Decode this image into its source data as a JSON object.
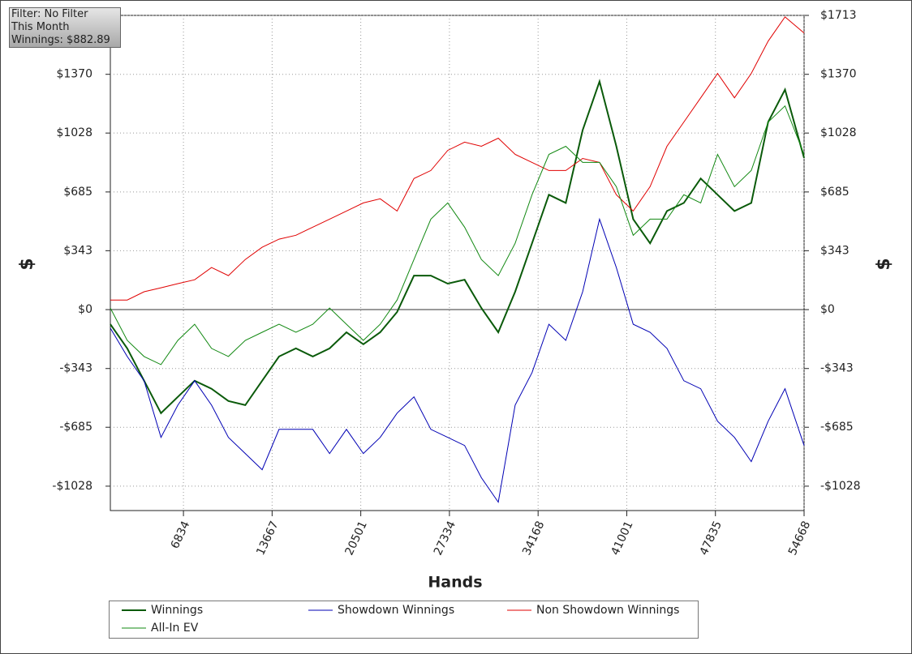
{
  "info": {
    "filter": "Filter: No Filter",
    "period": "This Month",
    "winnings": "Winnings: $882.89"
  },
  "chart_data": {
    "type": "line",
    "xlabel": "Hands",
    "ylabel": "$",
    "xlim": [
      1200,
      54668
    ],
    "xticks": [
      6834,
      13667,
      20501,
      27334,
      34168,
      41001,
      47835,
      54668
    ],
    "ylim": [
      -1170,
      1713
    ],
    "yticks": [
      {
        "value": -1028,
        "label": "-$1028"
      },
      {
        "value": -685,
        "label": "-$685"
      },
      {
        "value": -343,
        "label": "-$343"
      },
      {
        "value": 0,
        "label": "$0"
      },
      {
        "value": 343,
        "label": "$343"
      },
      {
        "value": 685,
        "label": "$685"
      },
      {
        "value": 1028,
        "label": "$1028"
      },
      {
        "value": 1370,
        "label": "$1370"
      },
      {
        "value": 1713,
        "label": "$1713"
      }
    ],
    "grid": true,
    "x": [
      1200,
      2500,
      3800,
      5100,
      6400,
      7700,
      9000,
      10300,
      11600,
      12900,
      14200,
      15500,
      16800,
      18100,
      19400,
      20700,
      22000,
      23300,
      24600,
      25900,
      27200,
      28500,
      29800,
      31100,
      32400,
      33700,
      35000,
      36300,
      37600,
      38900,
      40200,
      41500,
      42800,
      44100,
      45400,
      46700,
      48000,
      49300,
      50600,
      51900,
      53200,
      54668
    ],
    "series": [
      {
        "name": "Winnings",
        "color": "#0a5a0a",
        "values": [
          -85,
          -226,
          -414,
          -603,
          -508,
          -414,
          -461,
          -532,
          -556,
          -414,
          -273,
          -226,
          -273,
          -226,
          -132,
          -202,
          -132,
          -14,
          198,
          198,
          151,
          174,
          9,
          -132,
          104,
          386,
          669,
          621,
          1045,
          1328,
          951,
          527,
          386,
          574,
          621,
          763,
          669,
          574,
          621,
          1092,
          1281,
          883
        ]
      },
      {
        "name": "Showdown Winnings",
        "color": "#0000b4",
        "values": [
          -108,
          -273,
          -414,
          -744,
          -556,
          -414,
          -556,
          -744,
          -838,
          -932,
          -697,
          -697,
          -697,
          -838,
          -697,
          -838,
          -744,
          -603,
          -508,
          -697,
          -744,
          -791,
          -979,
          -1121,
          -556,
          -367,
          -85,
          -179,
          104,
          527,
          245,
          -85,
          -132,
          -226,
          -414,
          -461,
          -650,
          -744,
          -885,
          -650,
          -461,
          -791
        ]
      },
      {
        "name": "Non Showdown Winnings",
        "color": "#e00000",
        "values": [
          56,
          56,
          104,
          127,
          151,
          174,
          245,
          198,
          292,
          363,
          410,
          433,
          480,
          527,
          574,
          621,
          645,
          574,
          763,
          810,
          927,
          975,
          951,
          998,
          904,
          857,
          810,
          810,
          880,
          857,
          669,
          574,
          716,
          951,
          1092,
          1233,
          1375,
          1233,
          1375,
          1563,
          1704,
          1610
        ]
      },
      {
        "name": "All-In EV",
        "color": "#118811",
        "values": [
          9,
          -179,
          -273,
          -320,
          -179,
          -85,
          -226,
          -273,
          -179,
          -132,
          -85,
          -132,
          -85,
          9,
          -85,
          -179,
          -85,
          56,
          292,
          527,
          621,
          480,
          292,
          198,
          386,
          669,
          904,
          951,
          857,
          857,
          716,
          433,
          527,
          527,
          669,
          621,
          904,
          716,
          810,
          1092,
          1186,
          904
        ]
      }
    ]
  }
}
